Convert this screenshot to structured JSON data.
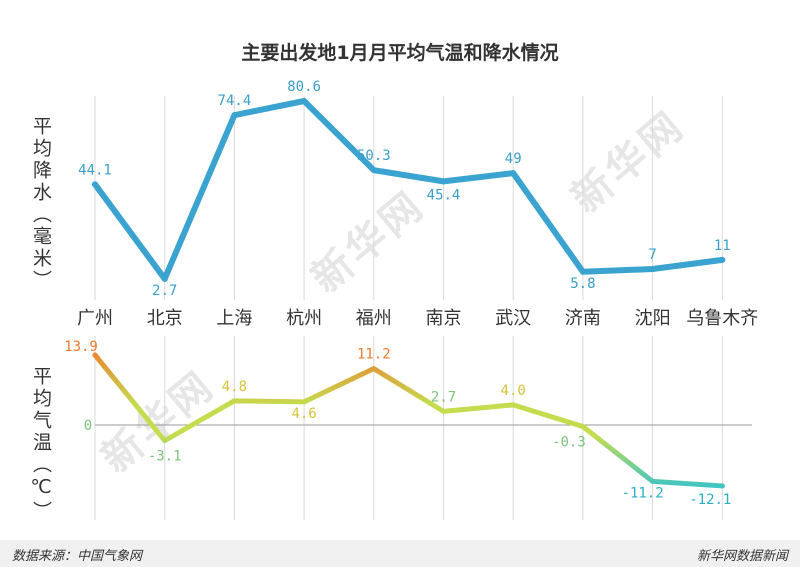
{
  "title": "主要出发地1月月平均气温和降水情况",
  "footer": {
    "source": "数据来源：中国气象网",
    "credit": "新华网数据新闻"
  },
  "watermark": "新华网",
  "colors": {
    "rain_line": "#3aa3cf",
    "rain_label": "#3a9fc9",
    "temp_hot": "#ee7a2e",
    "temp_mid": "#c5dc4f",
    "temp_cold": "#2bc1d6",
    "grid": "#d9d9d9",
    "text": "#333333"
  },
  "chart_data": [
    {
      "type": "line",
      "ylabel": "平均降水（毫米）",
      "categories": [
        "广州",
        "北京",
        "上海",
        "杭州",
        "福州",
        "南京",
        "武汉",
        "济南",
        "沈阳",
        "乌鲁木齐"
      ],
      "values": [
        44.1,
        2.7,
        74.4,
        80.6,
        50.3,
        45.4,
        49,
        5.8,
        7,
        11
      ],
      "labels": [
        "44.1",
        "2.7",
        "74.4",
        "80.6",
        "50.3",
        "45.4",
        "49",
        "5.8",
        "7",
        "11"
      ],
      "grid": "vertical"
    },
    {
      "type": "line",
      "ylabel": "平均气温（℃）",
      "categories": [
        "广州",
        "北京",
        "上海",
        "杭州",
        "福州",
        "南京",
        "武汉",
        "济南",
        "沈阳",
        "乌鲁木齐"
      ],
      "values": [
        13.9,
        -3.1,
        4.8,
        4.6,
        11.2,
        2.7,
        4.0,
        -0.3,
        -11.2,
        -12.1
      ],
      "labels": [
        "13.9",
        "-3.1",
        "4.8",
        "4.6",
        "11.2",
        "2.7",
        "4.0",
        "-0.3",
        "-11.2",
        "-12.1"
      ],
      "zero_label": "0",
      "grid": "vertical"
    }
  ]
}
